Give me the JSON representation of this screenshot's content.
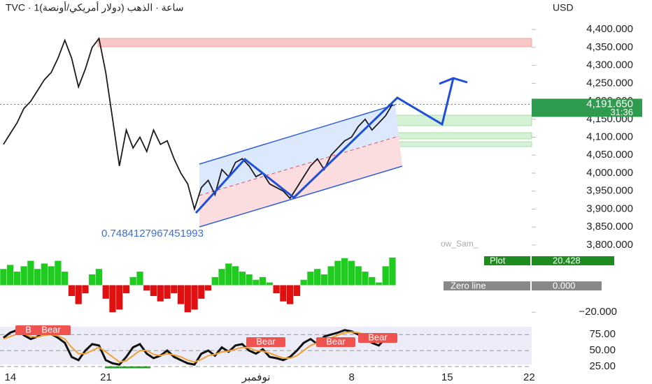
{
  "header": {
    "symbol_line": "TVC · 1ساعة · الذهب (دولار أمريكي/أونصة)",
    "currency": "USD",
    "indicator_value": "0.7484127967451993",
    "watermark": "ow_Sam_",
    "plot_label": "Plot",
    "last_price": {
      "value": 4191.65,
      "label": "4,191.650"
    },
    "countdown": "31:36",
    "zero_line": {
      "name": "Zero line",
      "level": {
        "value": 0,
        "label": "0.000"
      }
    },
    "signals": [
      "Bear",
      "Bear",
      "Bear",
      "Bear",
      "Bear"
    ]
  },
  "chart_data": [
    {
      "type": "line",
      "color": "#1b1b1b",
      "x": [
        0,
        0.5,
        1,
        1.5,
        2,
        2.5,
        3,
        3.5,
        4,
        4.5,
        5,
        5.5,
        6,
        6.5,
        7,
        7.5,
        8,
        8.5,
        9,
        9.5,
        10,
        10.5,
        11,
        11.5,
        12,
        12.5,
        13,
        13.5,
        14,
        14.5,
        15,
        15.5,
        16,
        16.5,
        17,
        17.5,
        18,
        18.5,
        19,
        19.5,
        20,
        20.5,
        21,
        21.5,
        22,
        22.5,
        23,
        23.5,
        24,
        24.5,
        25,
        25.5,
        26,
        26.5,
        27,
        27.5,
        28,
        28.5
      ],
      "values": [
        4080,
        4110,
        4140,
        4180,
        4200,
        4230,
        4260,
        4280,
        4320,
        4370,
        4320,
        4240,
        4290,
        4350,
        4375,
        4280,
        4150,
        4020,
        4120,
        4070,
        4100,
        4060,
        4120,
        4080,
        4090,
        4040,
        4000,
        3970,
        3900,
        3960,
        3980,
        3940,
        4010,
        3990,
        4030,
        4040,
        4020,
        3990,
        4000,
        3970,
        3960,
        3950,
        3930,
        3960,
        3990,
        4020,
        4040,
        4010,
        4050,
        4070,
        4090,
        4100,
        4130,
        4150,
        4120,
        4140,
        4160,
        4192
      ],
      "xlim": [
        -0.25,
        38.7
      ],
      "ylim": [
        3792,
        4482
      ],
      "yticks": [
        {
          "value": 4400,
          "label": "4,400.000"
        },
        {
          "value": 4350,
          "label": "4,350.000"
        },
        {
          "value": 4300,
          "label": "4,300.000"
        },
        {
          "value": 4250,
          "label": "4,250.000"
        },
        {
          "value": 4200,
          "label": "4,200.000"
        },
        {
          "value": 4150,
          "label": "4,150.000"
        },
        {
          "value": 4100,
          "label": "4,100.000"
        },
        {
          "value": 4050,
          "label": "4,050.000"
        },
        {
          "value": 4000,
          "label": "4,000.000"
        },
        {
          "value": 3950,
          "label": "3,950.000"
        },
        {
          "value": 3900,
          "label": "3,900.000"
        },
        {
          "value": 3850,
          "label": "3,850.000"
        },
        {
          "value": 3800,
          "label": "3,800.000"
        }
      ]
    },
    {
      "type": "bar",
      "positive_color": "#1ecb1e",
      "negative_color": "#e01010",
      "x": [
        0,
        0.5,
        1,
        1.5,
        2,
        2.5,
        3,
        3.5,
        4,
        4.5,
        5,
        5.5,
        6,
        6.5,
        7,
        7.5,
        8,
        8.5,
        9,
        9.5,
        10,
        10.5,
        11,
        11.5,
        12,
        12.5,
        13,
        13.5,
        14,
        14.5,
        15,
        15.5,
        16,
        16.5,
        17,
        17.5,
        18,
        18.5,
        19,
        19.5,
        20,
        20.5,
        21,
        21.5,
        22,
        22.5,
        23,
        23.5,
        24,
        24.5,
        25,
        25.5,
        26,
        26.5,
        27,
        27.5,
        28,
        28.5
      ],
      "values": [
        12,
        15,
        10,
        14,
        18,
        12,
        16,
        14,
        18,
        10,
        -8,
        -14,
        -6,
        8,
        12,
        -10,
        -20,
        -18,
        -6,
        6,
        10,
        -4,
        -8,
        -12,
        -10,
        -6,
        -14,
        -20,
        -18,
        -10,
        -4,
        6,
        12,
        16,
        14,
        10,
        8,
        4,
        6,
        2,
        -6,
        -12,
        -14,
        -8,
        4,
        10,
        12,
        8,
        14,
        18,
        20,
        18,
        14,
        10,
        6,
        2,
        14,
        20.428
      ],
      "xlim": [
        -0.25,
        38.7
      ],
      "ylim": [
        -24,
        25
      ],
      "yticks": [
        {
          "value": -20,
          "label": "−20.000"
        }
      ]
    },
    {
      "type": "line",
      "x": [
        0,
        0.5,
        1,
        1.5,
        2,
        2.5,
        3,
        3.5,
        4,
        4.5,
        5,
        5.5,
        6,
        6.5,
        7,
        7.5,
        8,
        8.5,
        9,
        9.5,
        10,
        10.5,
        11,
        11.5,
        12,
        12.5,
        13,
        13.5,
        14,
        14.5,
        15,
        15.5,
        16,
        16.5,
        17,
        17.5,
        18,
        18.5,
        19,
        19.5,
        20,
        20.5,
        21,
        21.5,
        22,
        22.5,
        23,
        23.5,
        24,
        24.5,
        25,
        25.5,
        26,
        26.5,
        27,
        27.5,
        28,
        28.5
      ],
      "series": [
        {
          "color": "#111111",
          "values": [
            70,
            78,
            82,
            74,
            68,
            72,
            80,
            76,
            70,
            62,
            40,
            35,
            50,
            60,
            58,
            35,
            30,
            28,
            40,
            55,
            60,
            45,
            38,
            42,
            50,
            40,
            35,
            30,
            28,
            45,
            50,
            42,
            55,
            48,
            58,
            60,
            50,
            45,
            52,
            40,
            38,
            35,
            40,
            50,
            62,
            68,
            60,
            72,
            75,
            78,
            82,
            80,
            75,
            70,
            62,
            58,
            70,
            75
          ]
        },
        {
          "color": "#f0a030",
          "values": [
            68,
            72,
            76,
            76,
            72,
            71,
            74,
            75,
            73,
            68,
            55,
            45,
            45,
            50,
            55,
            48,
            40,
            32,
            34,
            42,
            50,
            50,
            44,
            42,
            45,
            43,
            40,
            35,
            32,
            36,
            42,
            44,
            48,
            49,
            52,
            55,
            54,
            50,
            49,
            46,
            42,
            38,
            38,
            42,
            50,
            58,
            62,
            66,
            70,
            74,
            78,
            79,
            78,
            75,
            70,
            64,
            64,
            68
          ]
        }
      ],
      "xlim": [
        -0.25,
        38.7
      ],
      "ylim": [
        14,
        96
      ],
      "yticks": [
        {
          "value": 75,
          "label": "75.00"
        },
        {
          "value": 50,
          "label": "50.00"
        },
        {
          "value": 25,
          "label": "25.00"
        }
      ],
      "xticks": [
        {
          "value": 0,
          "label": "14"
        },
        {
          "value": 7,
          "label": "21"
        },
        {
          "value": 18,
          "label": "نوفمبر"
        },
        {
          "value": 25,
          "label": "8"
        },
        {
          "value": 32,
          "label": "15"
        },
        {
          "value": 38,
          "label": "22"
        }
      ]
    }
  ]
}
